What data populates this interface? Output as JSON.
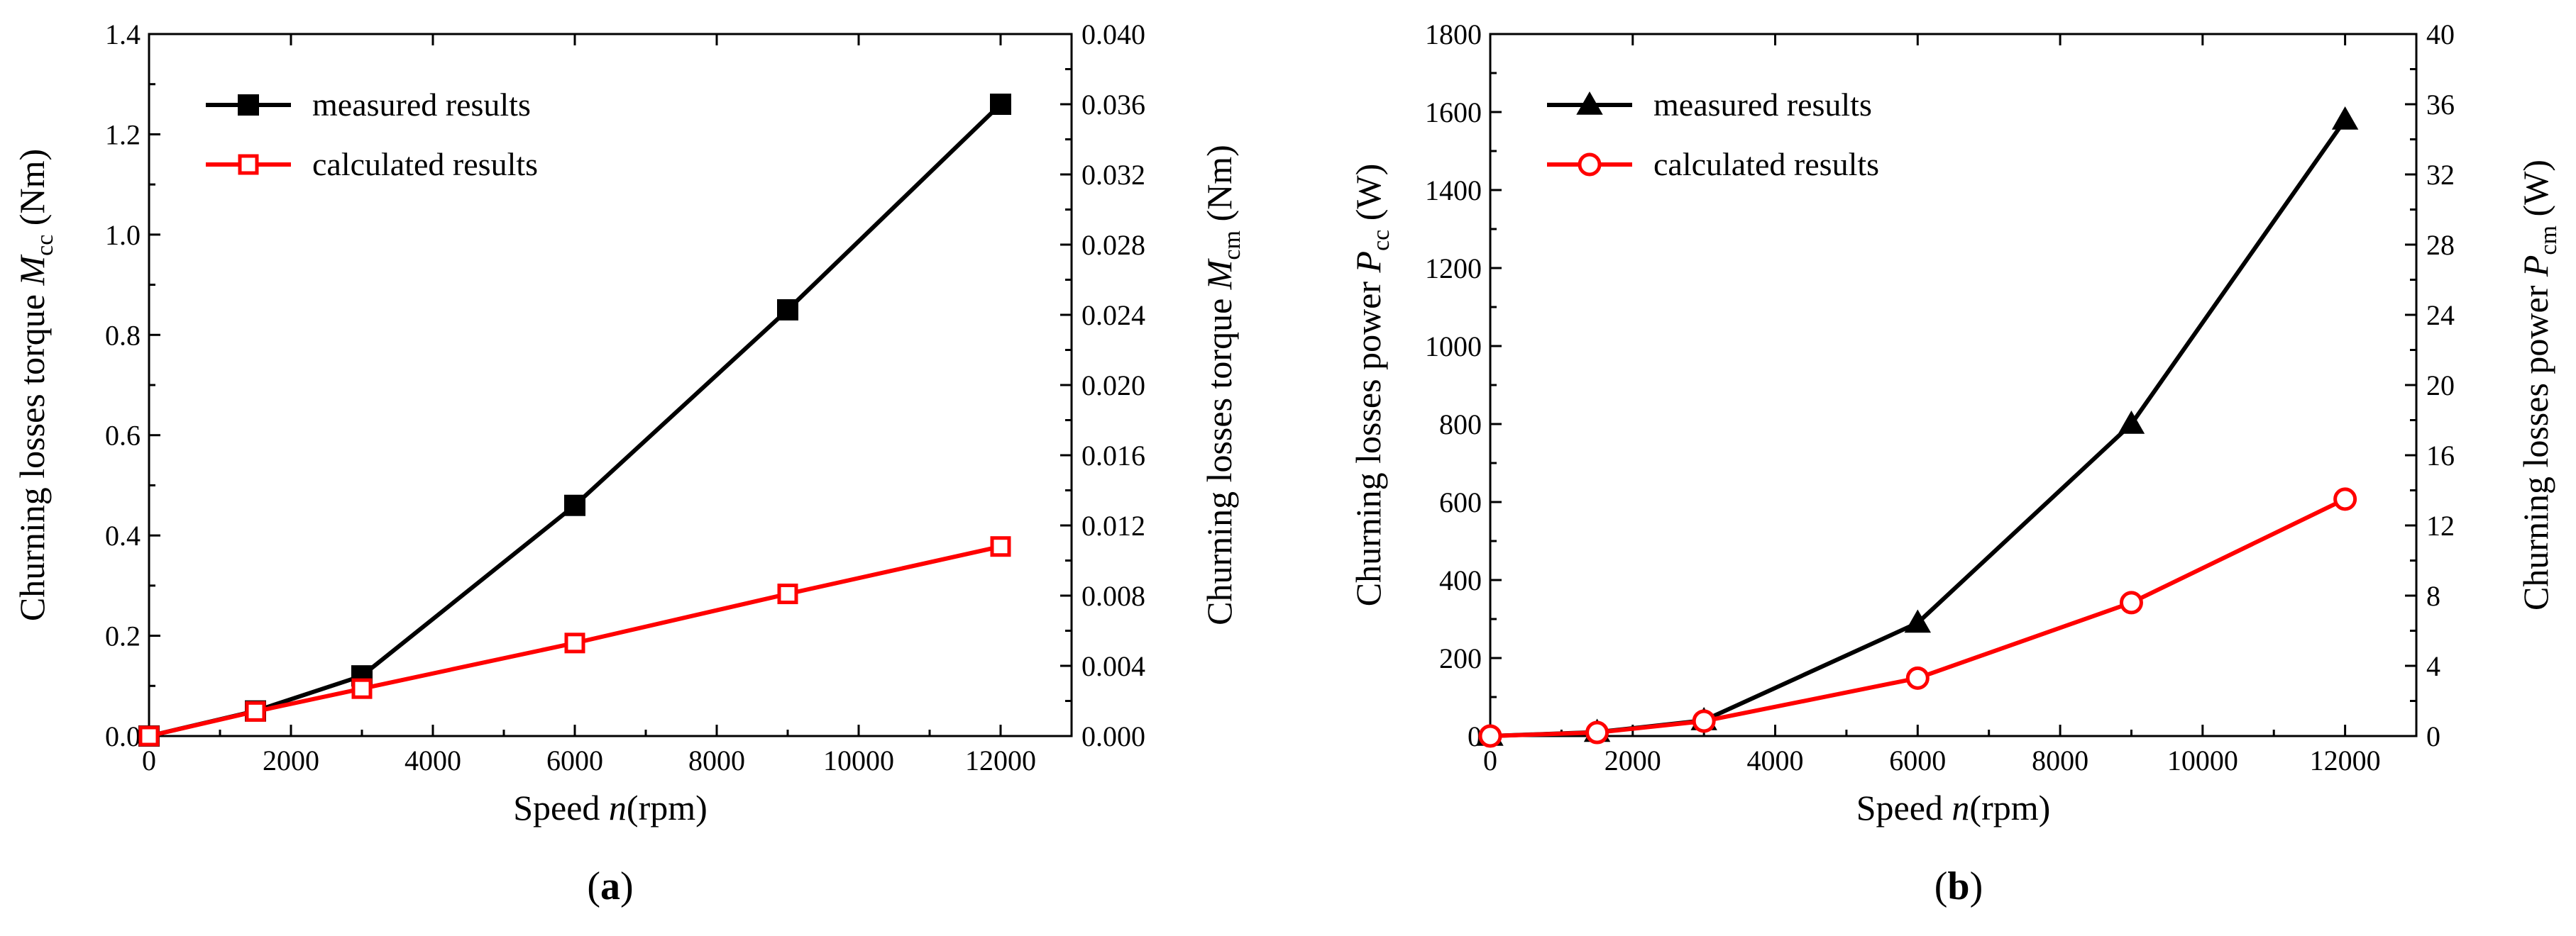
{
  "chart_data": [
    {
      "type": "line",
      "panel_label": "a",
      "x": [
        0,
        1500,
        3000,
        6000,
        9000,
        12000
      ],
      "xlabel_prefix": "Speed ",
      "xlabel_var": "n",
      "xlabel_unit": "(rpm)",
      "xlim": [
        0,
        13000
      ],
      "xticks": [
        0,
        2000,
        4000,
        6000,
        8000,
        10000,
        12000
      ],
      "ylabel": {
        "prefix": "Churning losses torque ",
        "var": "M",
        "sub": "cc",
        "unit": " (Nm)"
      },
      "ylim": [
        0,
        1.4
      ],
      "yticks": [
        0.0,
        0.2,
        0.4,
        0.6,
        0.8,
        1.0,
        1.2,
        1.4
      ],
      "ytick_decimals": 1,
      "y2label": {
        "prefix": "Churning losses torque ",
        "var": "M",
        "sub": "cm",
        "unit": " (Nm)"
      },
      "y2lim": [
        0,
        0.04
      ],
      "y2ticks": [
        0.0,
        0.004,
        0.008,
        0.012,
        0.016,
        0.02,
        0.024,
        0.028,
        0.032,
        0.036,
        0.04
      ],
      "y2tick_decimals": 3,
      "series": [
        {
          "name": "measured results",
          "axis": "left",
          "color": "#000000",
          "marker": "square-filled",
          "values": [
            0,
            0.05,
            0.12,
            0.46,
            0.85,
            1.26
          ]
        },
        {
          "name": "calculated results",
          "axis": "right",
          "color": "#ff0000",
          "marker": "square-open",
          "values": [
            0,
            0.0014,
            0.0027,
            0.0053,
            0.0081,
            0.0108
          ]
        }
      ],
      "legend_position": "top-left"
    },
    {
      "type": "line",
      "panel_label": "b",
      "x": [
        0,
        1500,
        3000,
        6000,
        9000,
        12000
      ],
      "xlabel_prefix": "Speed ",
      "xlabel_var": "n",
      "xlabel_unit": "(rpm)",
      "xlim": [
        0,
        13000
      ],
      "xticks": [
        0,
        2000,
        4000,
        6000,
        8000,
        10000,
        12000
      ],
      "ylabel": {
        "prefix": "Churning losses power ",
        "var": "P",
        "sub": "cc",
        "unit": " (W)"
      },
      "ylim": [
        0,
        1800
      ],
      "yticks": [
        0,
        200,
        400,
        600,
        800,
        1000,
        1200,
        1400,
        1600,
        1800
      ],
      "ytick_decimals": 0,
      "y2label": {
        "prefix": "Churning losses power ",
        "var": "P",
        "sub": "cm",
        "unit": " (W)"
      },
      "y2lim": [
        0,
        40
      ],
      "y2ticks": [
        0,
        4,
        8,
        12,
        16,
        20,
        24,
        28,
        32,
        36,
        40
      ],
      "y2tick_decimals": 0,
      "series": [
        {
          "name": "measured results",
          "axis": "left",
          "color": "#000000",
          "marker": "triangle-filled",
          "values": [
            0,
            10,
            40,
            290,
            800,
            1580
          ]
        },
        {
          "name": "calculated results",
          "axis": "right",
          "color": "#ff0000",
          "marker": "circle-open",
          "values": [
            0,
            0.2,
            0.85,
            3.3,
            7.6,
            13.5
          ]
        }
      ],
      "legend_position": "top-left"
    }
  ]
}
